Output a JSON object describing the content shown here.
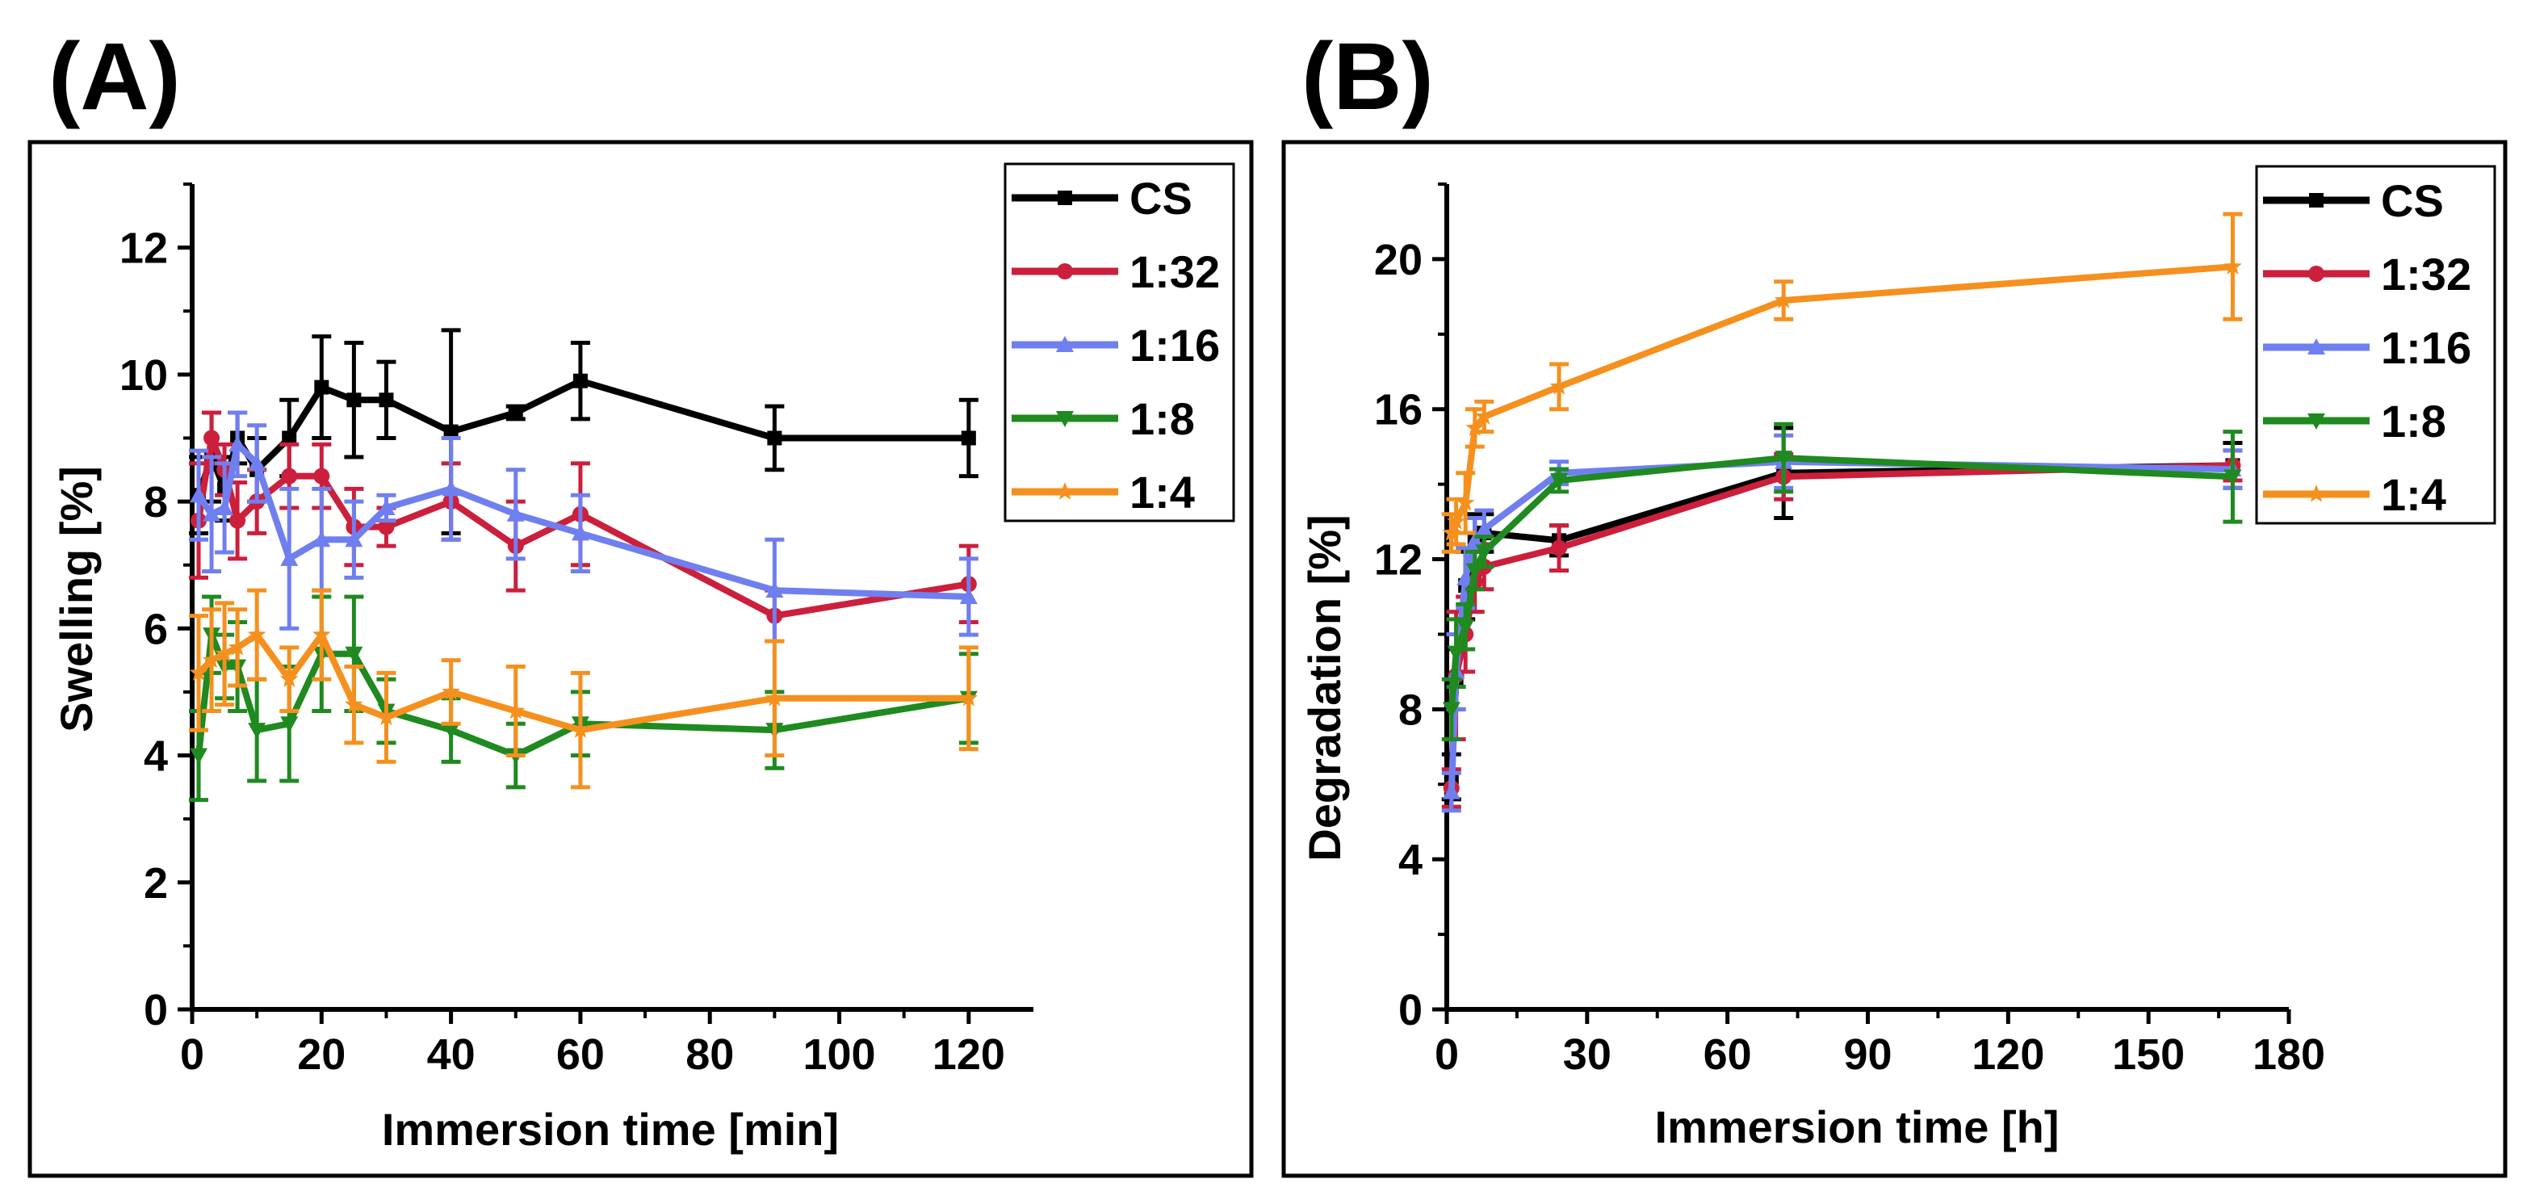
{
  "chart_data": [
    {
      "panel": "(A)",
      "type": "line",
      "xlabel": "Immersion time [min]",
      "ylabel": "Swelling [%]",
      "xlim": [
        0,
        130
      ],
      "ylim": [
        0,
        13
      ],
      "xticks": [
        0,
        20,
        40,
        60,
        80,
        100,
        120
      ],
      "yticks": [
        0,
        2,
        4,
        6,
        8,
        10,
        12
      ],
      "legend_position": "top-right",
      "grid": false,
      "series": [
        {
          "name": "CS",
          "color": "#000000",
          "marker": "square",
          "x": [
            1,
            3,
            5,
            7,
            10,
            15,
            20,
            25,
            30,
            40,
            50,
            60,
            90,
            120
          ],
          "y": [
            8.1,
            8.7,
            8.2,
            9.0,
            8.5,
            9.0,
            9.8,
            9.6,
            9.6,
            9.1,
            9.4,
            9.9,
            9.0,
            9.0
          ],
          "err": [
            0.6,
            0.7,
            0.5,
            0.4,
            0.5,
            0.6,
            0.8,
            0.9,
            0.6,
            1.6,
            0.1,
            0.6,
            0.5,
            0.6
          ]
        },
        {
          "name": "1:32",
          "color": "#cc1f3c",
          "marker": "circle",
          "x": [
            1,
            3,
            5,
            7,
            10,
            15,
            20,
            25,
            30,
            40,
            50,
            60,
            90,
            120
          ],
          "y": [
            7.7,
            9.0,
            8.5,
            7.7,
            8.0,
            8.4,
            8.4,
            7.6,
            7.6,
            8.0,
            7.3,
            7.8,
            6.2,
            6.7
          ],
          "err": [
            0.9,
            0.4,
            0.4,
            0.6,
            0.5,
            0.5,
            0.5,
            0.6,
            0.3,
            0.6,
            0.7,
            0.8,
            0.4,
            0.6
          ]
        },
        {
          "name": "1:16",
          "color": "#6f7ff0",
          "marker": "triangle",
          "x": [
            1,
            3,
            5,
            7,
            10,
            15,
            20,
            25,
            30,
            40,
            50,
            60,
            90,
            120
          ],
          "y": [
            8.1,
            7.8,
            7.9,
            8.9,
            8.6,
            7.1,
            7.4,
            7.4,
            7.9,
            8.2,
            7.8,
            7.5,
            6.6,
            6.5
          ],
          "err": [
            0.7,
            0.9,
            0.7,
            0.5,
            0.6,
            1.1,
            0.8,
            0.6,
            0.2,
            0.8,
            0.7,
            0.6,
            0.8,
            0.6
          ]
        },
        {
          "name": "1:8",
          "color": "#1f8a1f",
          "marker": "triangle-down",
          "x": [
            1,
            3,
            5,
            7,
            10,
            15,
            20,
            25,
            30,
            40,
            50,
            60,
            90,
            120
          ],
          "y": [
            4.0,
            5.9,
            5.4,
            5.4,
            4.4,
            4.5,
            5.6,
            5.6,
            4.7,
            4.4,
            4.0,
            4.5,
            4.4,
            4.9
          ],
          "err": [
            0.7,
            0.6,
            0.5,
            0.7,
            0.8,
            0.9,
            0.9,
            0.9,
            0.5,
            0.5,
            0.5,
            0.5,
            0.6,
            0.7
          ]
        },
        {
          "name": "1:4",
          "color": "#f5901e",
          "marker": "star",
          "x": [
            1,
            3,
            5,
            7,
            10,
            15,
            20,
            25,
            30,
            40,
            50,
            60,
            90,
            120
          ],
          "y": [
            5.3,
            5.5,
            5.6,
            5.7,
            5.9,
            5.2,
            5.9,
            4.8,
            4.6,
            5.0,
            4.7,
            4.4,
            4.9,
            4.9
          ],
          "err": [
            0.9,
            0.8,
            0.8,
            0.6,
            0.7,
            0.5,
            0.7,
            0.6,
            0.7,
            0.5,
            0.7,
            0.9,
            0.9,
            0.8
          ]
        }
      ]
    },
    {
      "panel": "(B)",
      "type": "line",
      "xlabel": "Immersion time [h]",
      "ylabel": "Degradation [%]",
      "xlim": [
        0,
        180
      ],
      "ylim": [
        0,
        22
      ],
      "xticks": [
        0,
        30,
        60,
        90,
        120,
        150,
        180
      ],
      "yticks": [
        0,
        4,
        8,
        12,
        16,
        20
      ],
      "legend_position": "top-right",
      "grid": false,
      "series": [
        {
          "name": "CS",
          "color": "#000000",
          "marker": "square",
          "x": [
            1,
            2,
            4,
            6,
            8,
            24,
            72,
            168
          ],
          "y": [
            6.2,
            8.8,
            11.3,
            12.5,
            12.7,
            12.5,
            14.3,
            14.5
          ],
          "err": [
            0.6,
            0.8,
            0.9,
            0.7,
            0.5,
            0.4,
            1.2,
            0.6
          ]
        },
        {
          "name": "1:32",
          "color": "#cc1f3c",
          "marker": "circle",
          "x": [
            1,
            2,
            4,
            6,
            8,
            24,
            72,
            168
          ],
          "y": [
            5.9,
            8.9,
            10.0,
            11.4,
            11.8,
            12.3,
            14.2,
            14.5
          ],
          "err": [
            0.5,
            1.7,
            1.0,
            0.8,
            0.6,
            0.6,
            0.6,
            0.4
          ]
        },
        {
          "name": "1:16",
          "color": "#6f7ff0",
          "marker": "triangle",
          "x": [
            1,
            2,
            4,
            6,
            8,
            24,
            72,
            168
          ],
          "y": [
            5.8,
            9.0,
            11.5,
            12.5,
            12.8,
            14.3,
            14.6,
            14.4
          ],
          "err": [
            0.5,
            1.0,
            0.8,
            0.6,
            0.5,
            0.3,
            0.7,
            0.5
          ]
        },
        {
          "name": "1:8",
          "color": "#1f8a1f",
          "marker": "triangle-down",
          "x": [
            1,
            2,
            4,
            6,
            8,
            24,
            72,
            168
          ],
          "y": [
            8.0,
            9.5,
            10.2,
            11.7,
            12.2,
            14.1,
            14.7,
            14.2
          ],
          "err": [
            0.8,
            0.9,
            0.6,
            0.5,
            0.4,
            0.3,
            0.9,
            1.2
          ]
        },
        {
          "name": "1:4",
          "color": "#f5901e",
          "marker": "star",
          "x": [
            1,
            2,
            4,
            6,
            8,
            24,
            72,
            168
          ],
          "y": [
            12.7,
            13.0,
            13.5,
            15.5,
            15.8,
            16.6,
            18.9,
            19.8
          ],
          "err": [
            0.5,
            0.6,
            0.8,
            0.5,
            0.4,
            0.6,
            0.5,
            1.4
          ]
        }
      ]
    }
  ]
}
